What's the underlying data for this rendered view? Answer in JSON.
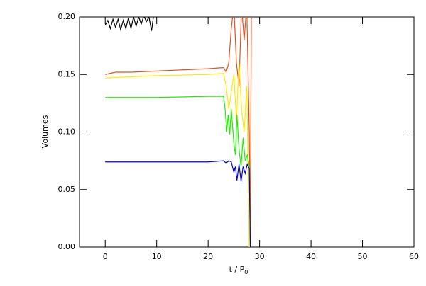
{
  "chart_data": {
    "type": "line",
    "xlabel": "t / P",
    "xlabel_subscript": "0",
    "ylabel": "Volumes",
    "xlim": [
      -5,
      60
    ],
    "ylim": [
      0,
      0.2
    ],
    "xticks": [
      0,
      10,
      20,
      30,
      40,
      50,
      60
    ],
    "yticks": [
      {
        "value": 0,
        "label": "0.00"
      },
      {
        "value": 0.05,
        "label": "0.05"
      },
      {
        "value": 0.1,
        "label": "0.10"
      },
      {
        "value": 0.15,
        "label": "0.15"
      },
      {
        "value": 0.2,
        "label": "0.20"
      }
    ],
    "series": [
      {
        "color": "#000000",
        "x": [
          0,
          0.5,
          1,
          1.5,
          2,
          2.5,
          3,
          3.5,
          4,
          4.5,
          5,
          5.5,
          6,
          6.5,
          7,
          7.5,
          8,
          8.5,
          9,
          9.5
        ],
        "values": [
          0.193,
          0.197,
          0.19,
          0.198,
          0.191,
          0.198,
          0.189,
          0.197,
          0.19,
          0.199,
          0.19,
          0.2,
          0.192,
          0.2,
          0.194,
          0.201,
          0.196,
          0.2,
          0.188,
          0.205
        ]
      },
      {
        "color": "#e8501e",
        "x": [
          0,
          2,
          5,
          10,
          15,
          20,
          23,
          23.5,
          24,
          24.5,
          25,
          25.5,
          26,
          26.5,
          27,
          27.5,
          28,
          28.2,
          28.4
        ],
        "values": [
          0.15,
          0.152,
          0.152,
          0.153,
          0.154,
          0.155,
          0.156,
          0.152,
          0.16,
          0.19,
          0.21,
          0.16,
          0.14,
          0.21,
          0.18,
          0.21,
          0.1,
          0,
          0.21
        ]
      },
      {
        "color": "#ffee00",
        "x": [
          0,
          10,
          20,
          23,
          23.5,
          24,
          24.5,
          25,
          25.5,
          26,
          26.5,
          27,
          27.5,
          28
        ],
        "values": [
          0.147,
          0.149,
          0.15,
          0.151,
          0.14,
          0.12,
          0.135,
          0.15,
          0.11,
          0.16,
          0.12,
          0.1,
          0.14,
          0
        ]
      },
      {
        "color": "#22ee00",
        "x": [
          0,
          10,
          20,
          23,
          23.3,
          23.6,
          23.9,
          24.2,
          24.5,
          25,
          25.3,
          25.6,
          26,
          26.4,
          26.8,
          27.2,
          27.6,
          28,
          28.2
        ],
        "values": [
          0.13,
          0.13,
          0.131,
          0.131,
          0.12,
          0.1,
          0.115,
          0.098,
          0.12,
          0.09,
          0.08,
          0.115,
          0.085,
          0.07,
          0.095,
          0.075,
          0.08,
          0.07,
          0
        ]
      },
      {
        "color": "#0000dd",
        "x": [
          0,
          10,
          20,
          23,
          23.5,
          24,
          24.5,
          25,
          25.3,
          25.6,
          26,
          26.4,
          26.8,
          27.2,
          27.6,
          28,
          28.2
        ],
        "values": [
          0.074,
          0.074,
          0.074,
          0.075,
          0.073,
          0.075,
          0.074,
          0.065,
          0.07,
          0.058,
          0.072,
          0.057,
          0.07,
          0.064,
          0.072,
          0.068,
          0
        ]
      }
    ]
  }
}
